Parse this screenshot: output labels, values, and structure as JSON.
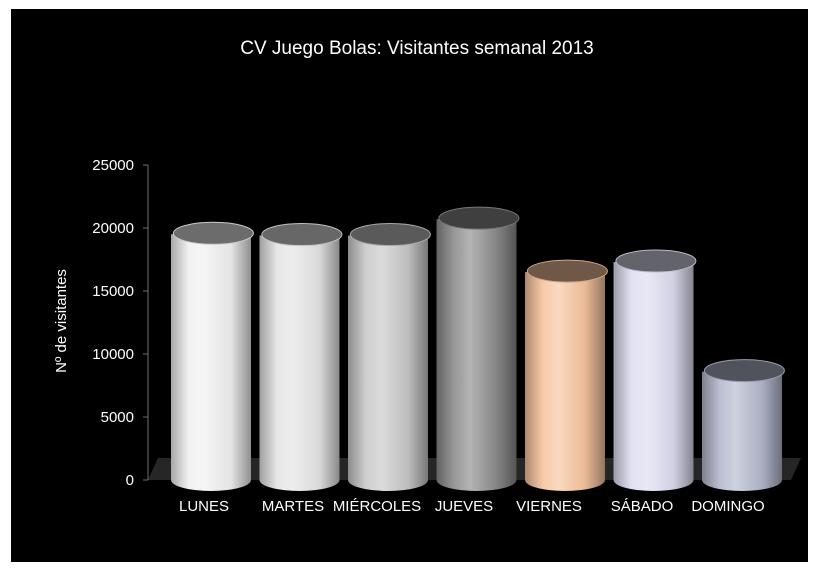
{
  "chart_data": {
    "type": "bar",
    "style": "3d-cylinder",
    "title": "CV Juego Bolas: Visitantes semanal 2013",
    "xlabel": "",
    "ylabel": "Nº de visitantes",
    "ylim": [
      0,
      25000
    ],
    "yticks": [
      "0",
      "5000",
      "10000",
      "15000",
      "20000",
      "25000"
    ],
    "categories": [
      "LUNES",
      "MARTES",
      "MIÉRCOLES",
      "JUEVES",
      "VIERNES",
      "SÁBADO",
      "DOMINGO"
    ],
    "values": [
      19500,
      19400,
      19400,
      20700,
      16500,
      17300,
      8600
    ],
    "colors": [
      "#f0f0f0",
      "#e4e4e4",
      "#c8c8c8",
      "#8c8c8c",
      "#f6c49e",
      "#dcdcf0",
      "#b4b8cc"
    ],
    "legend": "none",
    "grid": false
  }
}
